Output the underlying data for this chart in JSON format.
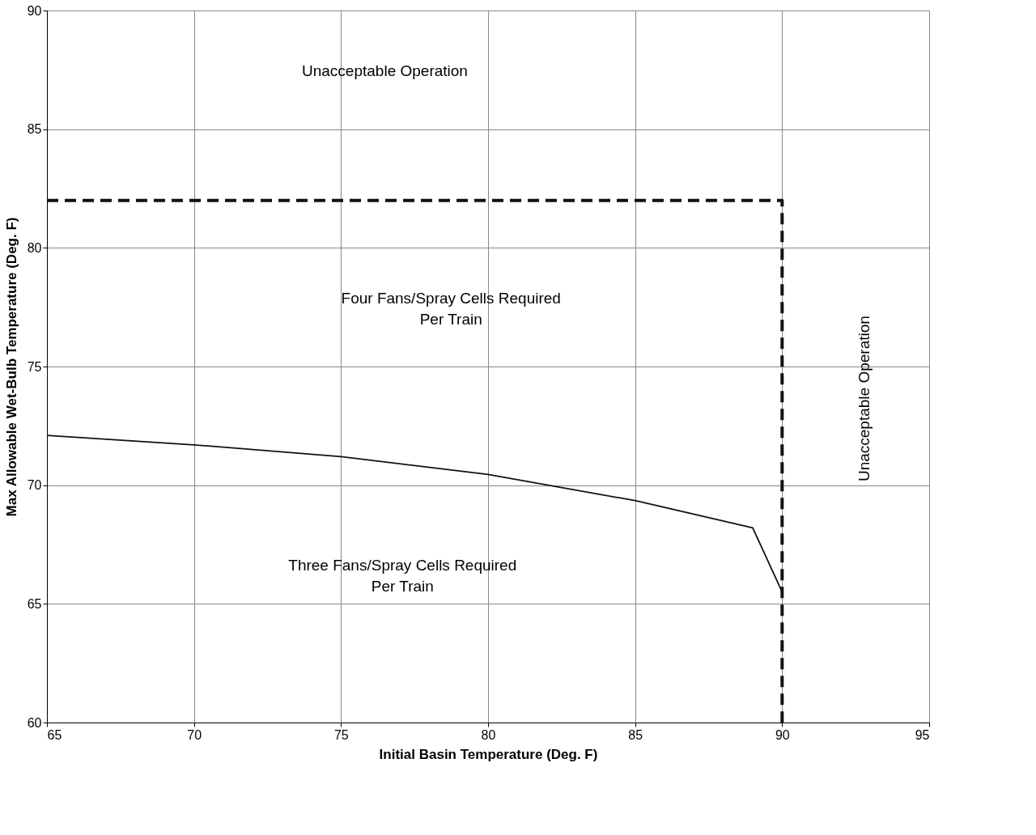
{
  "chart_data": {
    "type": "line",
    "xlabel": "Initial Basin Temperature (Deg. F)",
    "ylabel": "Max Allowable Wet-Bulb Temperature (Deg. F)",
    "xlim": [
      65,
      95
    ],
    "xticks": [
      65,
      70,
      75,
      80,
      85,
      90,
      95
    ],
    "ylim": [
      60,
      90
    ],
    "yticks": [
      60,
      65,
      70,
      75,
      80,
      85,
      90
    ],
    "grid": true,
    "series": [
      {
        "color": "#111111",
        "line_style": "solid",
        "x": [
          65,
          70,
          75,
          80,
          85,
          89,
          90
        ],
        "values": [
          72.1,
          71.7,
          71.2,
          70.45,
          69.35,
          68.2,
          65.5
        ]
      },
      {
        "color": "#111111",
        "line_style": "dashed",
        "x": [
          65,
          90,
          90
        ],
        "values": [
          82,
          82,
          60
        ]
      }
    ],
    "annotations": [
      "Unacceptable Operation",
      "Four Fans/Spray Cells Required\nPer Train",
      "Three Fans/Spray Cells Required\nPer Train",
      "Unacceptable Operation"
    ]
  }
}
